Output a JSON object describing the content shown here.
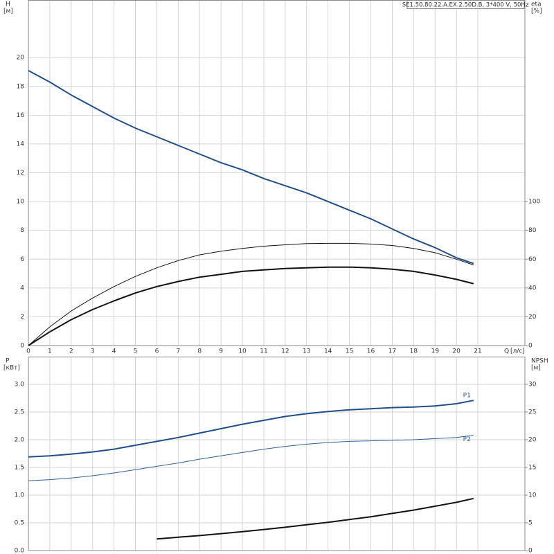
{
  "chart_data": [
    {
      "type": "line",
      "subtitle": "SE1.50.80.22.A.EX.2.50D.B, 3*400 V, 50Hz",
      "ylabel": "H",
      "yunit": "[м]",
      "y2label": "eta",
      "y2unit": "[%]",
      "xlabel": "Q",
      "xunit": "[л/с]",
      "xlim": [
        0,
        23.2
      ],
      "xticks": [
        0,
        1,
        2,
        3,
        4,
        5,
        6,
        7,
        8,
        9,
        10,
        11,
        12,
        13,
        14,
        15,
        16,
        17,
        18,
        19,
        20,
        21
      ],
      "ylim": [
        0,
        24
      ],
      "yticks": [
        0,
        2,
        4,
        6,
        8,
        10,
        12,
        14,
        16,
        18,
        20
      ],
      "y2lim": [
        0,
        240
      ],
      "y2ticks": [
        0,
        20,
        40,
        60,
        80,
        100
      ],
      "grid": true,
      "x": [
        0,
        1,
        2,
        3,
        4,
        5,
        6,
        7,
        8,
        9,
        10,
        11,
        12,
        13,
        14,
        15,
        16,
        17,
        18,
        19,
        20,
        20.8
      ],
      "series": [
        {
          "color": "#1f4e8c",
          "linewidth": 2,
          "values": [
            19.1,
            18.3,
            17.4,
            16.6,
            15.8,
            15.1,
            14.5,
            13.9,
            13.3,
            12.7,
            12.2,
            11.6,
            11.1,
            10.6,
            10.0,
            9.4,
            8.8,
            8.1,
            7.4,
            6.8,
            6.1,
            5.7
          ]
        },
        {
          "color": "#111111",
          "linewidth": 1,
          "axis": "y2",
          "values": [
            0,
            13,
            24,
            33,
            41,
            48,
            54,
            59,
            63,
            65.5,
            67.5,
            69,
            70,
            70.8,
            71,
            71,
            70.5,
            69.5,
            67.5,
            64.5,
            60,
            56
          ]
        },
        {
          "color": "#111111",
          "linewidth": 2,
          "axis": "y2",
          "values": [
            0,
            9.5,
            18,
            25,
            31,
            36.5,
            41,
            44.5,
            47.5,
            49.5,
            51.5,
            52.5,
            53.5,
            54,
            54.5,
            54.5,
            54,
            53,
            51.5,
            49,
            46,
            43
          ]
        }
      ]
    },
    {
      "type": "line",
      "ylabel": "P",
      "yunit": "[кВт]",
      "y2label": "NPSH",
      "y2unit": "[м]",
      "xlim": [
        0,
        23.2
      ],
      "ylim": [
        0,
        3.5
      ],
      "yticks": [
        {
          "value": 0,
          "label": "0.0"
        },
        0.5,
        {
          "value": 1,
          "label": "1.0"
        },
        1.5,
        {
          "value": 2,
          "label": "2.0"
        },
        2.5,
        {
          "value": 3,
          "label": "3.0"
        }
      ],
      "y2lim": [
        0,
        35
      ],
      "y2ticks": [
        0,
        5,
        10,
        15,
        20,
        25,
        30
      ],
      "grid": true,
      "x": [
        0,
        1,
        2,
        3,
        4,
        5,
        6,
        7,
        8,
        9,
        10,
        11,
        12,
        13,
        14,
        15,
        16,
        17,
        18,
        19,
        20,
        20.8
      ],
      "series": [
        {
          "name": "P1",
          "color": "#1f4e8c",
          "linewidth": 2,
          "values": [
            1.69,
            1.71,
            1.74,
            1.78,
            1.83,
            1.9,
            1.97,
            2.04,
            2.12,
            2.2,
            2.28,
            2.35,
            2.42,
            2.47,
            2.51,
            2.54,
            2.56,
            2.58,
            2.59,
            2.61,
            2.65,
            2.71
          ]
        },
        {
          "name": "P2",
          "color": "#2b5f9e",
          "linewidth": 1,
          "values": [
            1.26,
            1.28,
            1.31,
            1.35,
            1.4,
            1.46,
            1.52,
            1.58,
            1.65,
            1.71,
            1.77,
            1.83,
            1.88,
            1.92,
            1.95,
            1.97,
            1.98,
            1.99,
            2.0,
            2.02,
            2.04,
            2.08
          ]
        },
        {
          "color": "#111111",
          "linewidth": 2,
          "axis": "y2",
          "values": [
            null,
            null,
            null,
            null,
            null,
            null,
            2.1,
            2.4,
            2.7,
            3.05,
            3.4,
            3.8,
            4.2,
            4.65,
            5.1,
            5.6,
            6.1,
            6.7,
            7.3,
            8.0,
            8.7,
            9.4
          ]
        }
      ]
    }
  ]
}
